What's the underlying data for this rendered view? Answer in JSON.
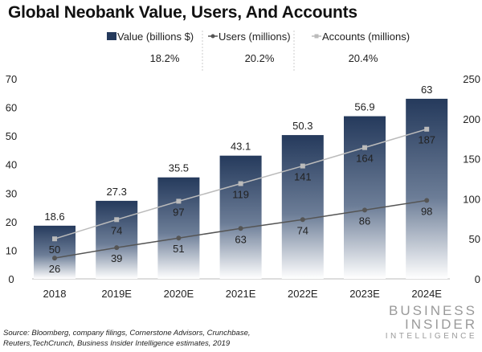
{
  "chart_data": {
    "type": "bar",
    "title": "Global Neobank Value, Users, And Accounts",
    "categories": [
      "2018",
      "2019E",
      "2020E",
      "2021E",
      "2022E",
      "2023E",
      "2024E"
    ],
    "series": [
      {
        "name": "Value (billions $)",
        "kind": "bar",
        "axis": "left",
        "values": [
          18.6,
          27.3,
          35.5,
          43.1,
          50.3,
          56.9,
          63
        ],
        "cagr": "18.2%",
        "color": "#253a5c"
      },
      {
        "name": "Users (millions)",
        "kind": "line",
        "axis": "right",
        "values": [
          26,
          39,
          51,
          63,
          74,
          86,
          98
        ],
        "cagr": "20.2%",
        "color": "#555555"
      },
      {
        "name": "Accounts (millions)",
        "kind": "line",
        "axis": "right",
        "values": [
          50,
          74,
          97,
          119,
          141,
          164,
          187
        ],
        "cagr": "20.4%",
        "color": "#bbbbbb"
      }
    ],
    "left_axis": {
      "ylim": [
        0,
        70
      ],
      "ticks": [
        0,
        10,
        20,
        30,
        40,
        50,
        60,
        70
      ]
    },
    "right_axis": {
      "ylim": [
        0,
        250
      ],
      "ticks": [
        0,
        50,
        100,
        150,
        200,
        250
      ]
    },
    "legend_placement": "top",
    "grid": false
  },
  "source": "Source: Bloomberg, company filings, Cornerstone Advisors, Crunchbase, Reuters,TechCrunch, Business Insider Intelligence estimates, 2019",
  "logo": [
    "BUSINESS",
    "INSIDER",
    "INTELLIGENCE"
  ]
}
